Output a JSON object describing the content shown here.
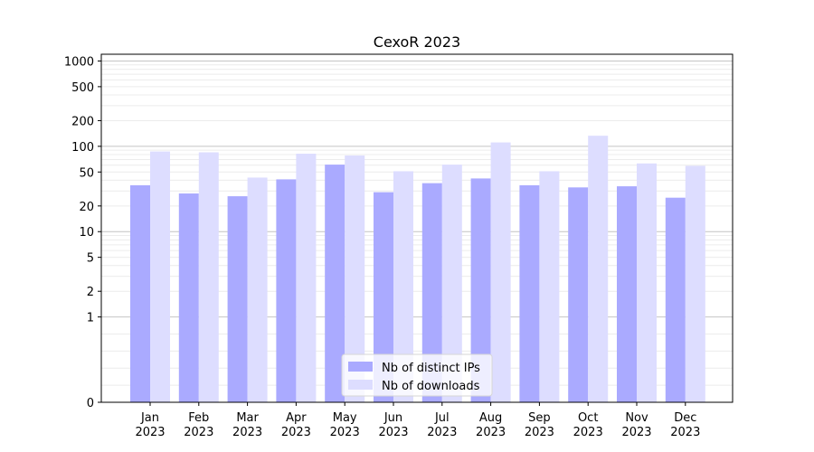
{
  "chart_data": {
    "type": "bar",
    "title": "CexoR 2023",
    "categories": [
      "Jan\n2023",
      "Feb\n2023",
      "Mar\n2023",
      "Apr\n2023",
      "May\n2023",
      "Jun\n2023",
      "Jul\n2023",
      "Aug\n2023",
      "Sep\n2023",
      "Oct\n2023",
      "Nov\n2023",
      "Dec\n2023"
    ],
    "series": [
      {
        "name": "Nb of distinct IPs",
        "color": "#aaaaff",
        "values": [
          35,
          28,
          26,
          41,
          61,
          29,
          37,
          42,
          35,
          33,
          34,
          25
        ]
      },
      {
        "name": "Nb of downloads",
        "color": "#ddddff",
        "values": [
          87,
          85,
          43,
          82,
          78,
          51,
          61,
          111,
          51,
          133,
          63,
          59
        ]
      }
    ],
    "yscale": "symlog",
    "yticks": [
      0,
      1,
      2,
      5,
      10,
      20,
      50,
      100,
      200,
      500,
      1000
    ],
    "ylim": [
      0,
      1200
    ],
    "grid": true,
    "legend_position": "lower center",
    "xlabel": "",
    "ylabel": ""
  }
}
